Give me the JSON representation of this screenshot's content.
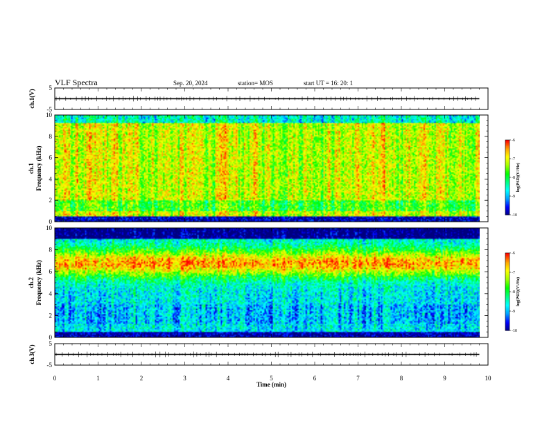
{
  "header": {
    "title": "VLF Spectra",
    "date": "Sep. 20, 2024",
    "station": "station= MOS",
    "start": "start UT =  16: 20: 1"
  },
  "chart_data": [
    {
      "type": "line",
      "panel": "waveform-ch1",
      "ylabel": "ch.1(V)",
      "ylim": [
        -5,
        5
      ],
      "yticks": [
        "5",
        "-5"
      ],
      "x": [
        0,
        10
      ],
      "values": [
        0,
        0
      ],
      "note_xrange": [
        0,
        9.8
      ]
    },
    {
      "type": "heatmap",
      "panel": "spectrogram-ch1",
      "ylabel_lines": [
        "ch.1",
        "Frequency (kHz)"
      ],
      "ylim": [
        0,
        10
      ],
      "yticks": [
        "0",
        "2",
        "4",
        "6",
        "8",
        "10"
      ],
      "xlim": [
        0,
        10
      ],
      "data_xrange": [
        0,
        9.8
      ],
      "colorbar": {
        "label": "log(PSD)(V²/Hz)",
        "ticks": [
          "-6",
          "-7",
          "-8",
          "-9",
          "-10"
        ],
        "range": [
          -10,
          -6
        ]
      }
    },
    {
      "type": "heatmap",
      "panel": "spectrogram-ch2",
      "ylabel_lines": [
        "ch.2",
        "Frequency (kHz)"
      ],
      "ylim": [
        0,
        10
      ],
      "yticks": [
        "0",
        "2",
        "4",
        "6",
        "8",
        "10"
      ],
      "xlim": [
        0,
        10
      ],
      "data_xrange": [
        0,
        9.8
      ],
      "colorbar": {
        "label": "log(PSD)(V²/Hz)",
        "ticks": [
          "-6",
          "-7",
          "-8",
          "-9",
          "-10"
        ],
        "range": [
          -10,
          -6
        ]
      }
    },
    {
      "type": "line",
      "panel": "waveform-ch3",
      "ylabel": "ch.3(V)",
      "ylim": [
        -5,
        5
      ],
      "yticks": [
        "5",
        "-5"
      ],
      "x": [
        0,
        10
      ],
      "values": [
        0,
        0
      ]
    }
  ],
  "xaxis": {
    "label": "Time (min)",
    "ticks": [
      "0",
      "1",
      "2",
      "3",
      "4",
      "5",
      "6",
      "7",
      "8",
      "9",
      "10"
    ]
  },
  "colors": {
    "axis": "#000000",
    "colormap": [
      "#000080",
      "#0000ff",
      "#00a0ff",
      "#00ffff",
      "#00ff80",
      "#00ff00",
      "#a0ff00",
      "#ffff00",
      "#ffa000",
      "#ff0000",
      "#ffffff"
    ]
  }
}
